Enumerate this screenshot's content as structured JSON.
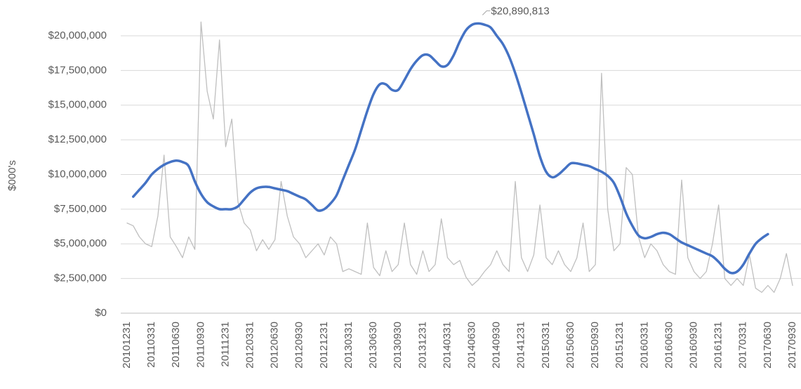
{
  "chart_data": {
    "type": "line",
    "y_label": "$000's",
    "categories": [
      "20101231",
      null,
      null,
      null,
      "20110331",
      null,
      null,
      null,
      "20110630",
      null,
      null,
      null,
      "20110930",
      null,
      null,
      null,
      "20111231",
      null,
      null,
      null,
      "20120331",
      null,
      null,
      null,
      "20120630",
      null,
      null,
      null,
      "20120930",
      null,
      null,
      null,
      "20121231",
      null,
      null,
      null,
      "20130331",
      null,
      null,
      null,
      "20130630",
      null,
      null,
      null,
      "20130930",
      null,
      null,
      null,
      "20131231",
      null,
      null,
      null,
      "20140331",
      null,
      null,
      null,
      "20140630",
      null,
      null,
      null,
      "20140930",
      null,
      null,
      null,
      "20141231",
      null,
      null,
      null,
      "20150331",
      null,
      null,
      null,
      "20150630",
      null,
      null,
      null,
      "20150930",
      null,
      null,
      null,
      "20151231",
      null,
      null,
      null,
      "20160331",
      null,
      null,
      null,
      "20160630",
      null,
      null,
      null,
      "20160930",
      null,
      null,
      null,
      "20161231",
      null,
      null,
      null,
      "20170331",
      null,
      null,
      null,
      "20170630",
      null,
      null,
      null,
      "20170930"
    ],
    "series": [
      {
        "color": "#bfbfbf",
        "smooth": false,
        "values": [
          6500000,
          6300000,
          5500000,
          5000000,
          4800000,
          7000000,
          11400000,
          5500000,
          4800000,
          4000000,
          5500000,
          4600000,
          21000000,
          16000000,
          14000000,
          19700000,
          12000000,
          14000000,
          8000000,
          6500000,
          6000000,
          4500000,
          5300000,
          4600000,
          5300000,
          9500000,
          7000000,
          5500000,
          5000000,
          4000000,
          4500000,
          5000000,
          4200000,
          5500000,
          5000000,
          3000000,
          3200000,
          3000000,
          2800000,
          6500000,
          3300000,
          2700000,
          4500000,
          3000000,
          3500000,
          6500000,
          3500000,
          2800000,
          4500000,
          3000000,
          3500000,
          6800000,
          4000000,
          3500000,
          3800000,
          2600000,
          2000000,
          2400000,
          3000000,
          3500000,
          4500000,
          3500000,
          3000000,
          9500000,
          4000000,
          3000000,
          4200000,
          7800000,
          4000000,
          3500000,
          4500000,
          3500000,
          3000000,
          4000000,
          6500000,
          3000000,
          3500000,
          17300000,
          7500000,
          4500000,
          5000000,
          10500000,
          10000000,
          5500000,
          4000000,
          5000000,
          4500000,
          3500000,
          3000000,
          2800000,
          9600000,
          4000000,
          3000000,
          2500000,
          3000000,
          5000000,
          7800000,
          2500000,
          2000000,
          2500000,
          2000000,
          4200000,
          1800000,
          1500000,
          2000000,
          1500000,
          2500000,
          4300000,
          2000000
        ]
      },
      {
        "color": "#4472c4",
        "smooth": true,
        "values": [
          null,
          8400000,
          8900000,
          9400000,
          10000000,
          10400000,
          10700000,
          10900000,
          11000000,
          10900000,
          10600000,
          9500000,
          8600000,
          8000000,
          7700000,
          7500000,
          7500000,
          7500000,
          7700000,
          8200000,
          8700000,
          9000000,
          9100000,
          9100000,
          9000000,
          8900000,
          8800000,
          8600000,
          8400000,
          8200000,
          7800000,
          7400000,
          7500000,
          7900000,
          8500000,
          9600000,
          10700000,
          11800000,
          13200000,
          14600000,
          15800000,
          16500000,
          16500000,
          16100000,
          16100000,
          16800000,
          17600000,
          18200000,
          18600000,
          18600000,
          18200000,
          17800000,
          17900000,
          18600000,
          19600000,
          20400000,
          20800000,
          20890813,
          20800000,
          20600000,
          20000000,
          19400000,
          18500000,
          17300000,
          15900000,
          14400000,
          12900000,
          11300000,
          10200000,
          9800000,
          10000000,
          10400000,
          10800000,
          10800000,
          10700000,
          10600000,
          10400000,
          10200000,
          9900000,
          9400000,
          8400000,
          7200000,
          6300000,
          5600000,
          5400000,
          5500000,
          5700000,
          5800000,
          5700000,
          5400000,
          5100000,
          4900000,
          4700000,
          4500000,
          4300000,
          4100000,
          3700000,
          3200000,
          2900000,
          3000000,
          3500000,
          4300000,
          5000000,
          5400000,
          5700000,
          null,
          null,
          null,
          null
        ],
        "value_labels": [
          null,
          null,
          null,
          null,
          null,
          null,
          null,
          null,
          null,
          null,
          null,
          null,
          null,
          null,
          null,
          null,
          null,
          null,
          null,
          null,
          null,
          null,
          null,
          null,
          null,
          null,
          null,
          null,
          null,
          null,
          null,
          null,
          null,
          null,
          null,
          null,
          null,
          null,
          null,
          null,
          null,
          null,
          null,
          null,
          null,
          null,
          null,
          null,
          null,
          null,
          null,
          null,
          null,
          null,
          null,
          null,
          null,
          "$20,890,813",
          null,
          null,
          null,
          null,
          null,
          null,
          null,
          null,
          null,
          null,
          null,
          null,
          null,
          null,
          null,
          null,
          null,
          null,
          null,
          null,
          null,
          null,
          null,
          null,
          null,
          null,
          null,
          null,
          null,
          null,
          null,
          null,
          null,
          null,
          null,
          null,
          null,
          null,
          null,
          null,
          null,
          null,
          null,
          null,
          null,
          null,
          null,
          null,
          null,
          null,
          null
        ]
      }
    ],
    "ylim": [
      0,
      20000000
    ],
    "yticks": [
      {
        "value": 0,
        "label": "$0"
      },
      {
        "value": 2500000,
        "label": "$2,500,000"
      },
      {
        "value": 5000000,
        "label": "$5,000,000"
      },
      {
        "value": 7500000,
        "label": "$7,500,000"
      },
      {
        "value": 10000000,
        "label": "$10,000,000"
      },
      {
        "value": 12500000,
        "label": "$12,500,000"
      },
      {
        "value": 15000000,
        "label": "$15,000,000"
      },
      {
        "value": 17500000,
        "label": "$17,500,000"
      },
      {
        "value": 20000000,
        "label": "$20,000,000"
      }
    ],
    "grid": true
  }
}
